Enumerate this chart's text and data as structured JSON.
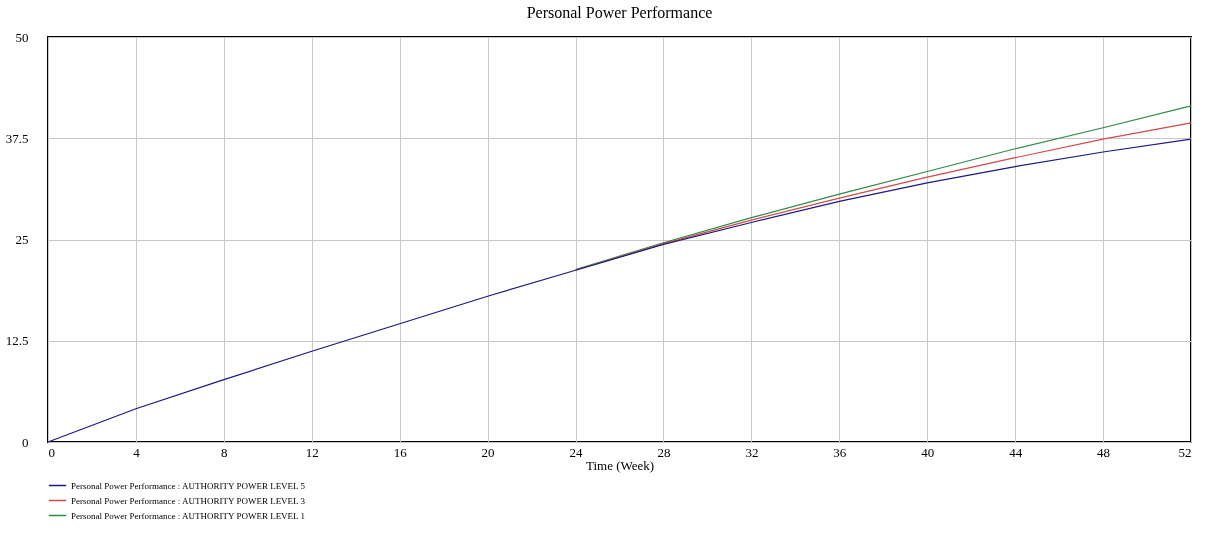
{
  "chart_data": {
    "type": "line",
    "title": "Personal Power Performance",
    "xlabel": "Time (Week)",
    "x": [
      0,
      4,
      8,
      12,
      16,
      20,
      24,
      28,
      32,
      36,
      40,
      44,
      48,
      52
    ],
    "series": [
      {
        "name": "Personal Power Performance : AUTHORITY POWER LEVEL 5",
        "color": "#1a1a80",
        "values": [
          0,
          4.1,
          7.7,
          11.2,
          14.6,
          18.0,
          21.2,
          24.4,
          27.1,
          29.7,
          32.0,
          34.0,
          35.8,
          37.4
        ]
      },
      {
        "name": "Personal Power Performance : AUTHORITY POWER LEVEL 3",
        "color": "#d04a4a",
        "values": [
          null,
          null,
          null,
          null,
          null,
          null,
          21.2,
          24.5,
          27.4,
          30.1,
          32.7,
          35.1,
          37.4,
          39.4
        ]
      },
      {
        "name": "Personal Power Performance : AUTHORITY POWER LEVEL 1",
        "color": "#2e8b45",
        "values": [
          null,
          null,
          null,
          null,
          null,
          null,
          21.3,
          24.6,
          27.7,
          30.6,
          33.4,
          36.2,
          38.8,
          41.5
        ]
      }
    ],
    "xlim": [
      0,
      52
    ],
    "xticks": [
      0,
      4,
      8,
      12,
      16,
      20,
      24,
      28,
      32,
      36,
      40,
      44,
      48,
      52
    ],
    "ylim": [
      0,
      50
    ],
    "yticks": [
      0,
      12.5,
      25,
      37.5,
      50
    ],
    "grid": true,
    "legend": "bottom left",
    "marker": "none",
    "line_style": "solid"
  }
}
